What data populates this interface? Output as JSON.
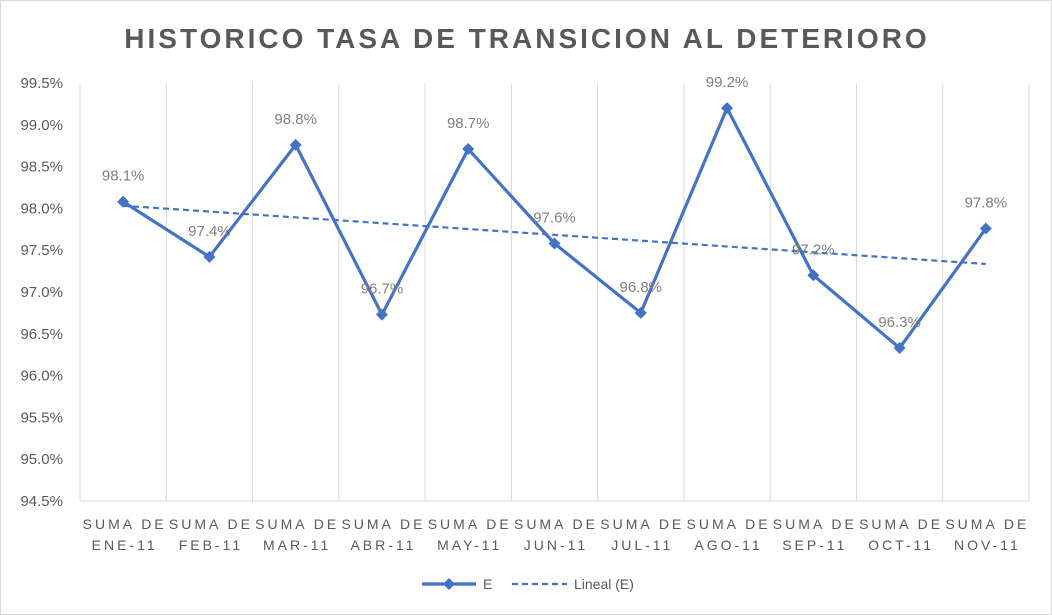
{
  "chart_data": {
    "type": "line",
    "title": "HISTORICO TASA DE TRANSICION AL DETERIORO",
    "categories": [
      [
        "SUMA DE",
        "ENE-11"
      ],
      [
        "SUMA DE",
        "FEB-11"
      ],
      [
        "SUMA DE",
        "MAR-11"
      ],
      [
        "SUMA DE",
        "ABR-11"
      ],
      [
        "SUMA DE",
        "MAY-11"
      ],
      [
        "SUMA DE",
        "JUN-11"
      ],
      [
        "SUMA DE",
        "JUL-11"
      ],
      [
        "SUMA DE",
        "AGO-11"
      ],
      [
        "SUMA DE",
        "SEP-11"
      ],
      [
        "SUMA DE",
        "OCT-11"
      ],
      [
        "SUMA DE",
        "NOV-11"
      ]
    ],
    "series": [
      {
        "name": "E",
        "values": [
          98.08,
          97.42,
          98.76,
          96.73,
          98.71,
          97.58,
          96.75,
          99.2,
          97.2,
          96.33,
          97.76
        ],
        "labels": [
          "98.1%",
          "97.4%",
          "98.8%",
          "96.7%",
          "98.7%",
          "97.6%",
          "96.8%",
          "99.2%",
          "97.2%",
          "96.3%",
          "97.8%"
        ],
        "color": "#4472c4"
      }
    ],
    "trendline": {
      "name": "Lineal (E)",
      "type": "linear",
      "color": "#4472c4"
    },
    "yticks": [
      "94.5%",
      "95.0%",
      "95.5%",
      "96.0%",
      "96.5%",
      "97.0%",
      "97.5%",
      "98.0%",
      "98.5%",
      "99.0%",
      "99.5%"
    ],
    "ylim": [
      94.5,
      99.5
    ],
    "grid": "vertical",
    "legend_position": "bottom"
  }
}
